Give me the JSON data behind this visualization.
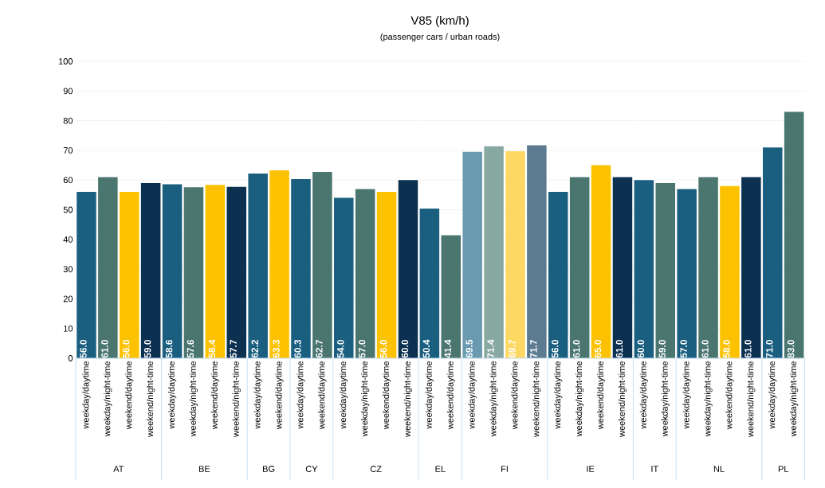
{
  "chart_data": [
    {
      "type": "bar",
      "xlabel": "AT",
      "categories": [
        "weekday/daytime",
        "weekday/night-time",
        "weekend/daytime",
        "weekend/night-time"
      ],
      "values": [
        56.0,
        61.0,
        56.0,
        59.0
      ],
      "value_labels": [
        "56.0",
        "61.0",
        "56.0",
        "59.0"
      ],
      "colors": [
        "#1a5f80",
        "#4a766f",
        "#fcc200",
        "#0b3050"
      ],
      "ylim": [
        0,
        100
      ],
      "yticks": [
        0,
        10,
        20,
        30,
        40,
        50,
        60,
        70,
        80,
        90,
        100
      ],
      "grid": "y"
    },
    {
      "type": "bar",
      "xlabel": "BE",
      "categories": [
        "weekday/daytime",
        "weekday/night-time",
        "weekend/daytime",
        "weekend/night-time"
      ],
      "values": [
        58.6,
        57.6,
        58.4,
        57.7
      ],
      "value_labels": [
        "58.6",
        "57.6",
        "58.4",
        "57.7"
      ],
      "colors": [
        "#1a5f80",
        "#4a766f",
        "#fcc200",
        "#0b3050"
      ],
      "ylim": [
        0,
        100
      ],
      "yticks": [
        0,
        10,
        20,
        30,
        40,
        50,
        60,
        70,
        80,
        90,
        100
      ],
      "grid": "y",
      "tick_labels": "x"
    },
    {
      "type": "bar",
      "xlabel": "BG",
      "categories": [
        "weekday/daytime",
        "weekend/daytime"
      ],
      "values": [
        62.2,
        63.3
      ],
      "value_labels": [
        "62.2",
        "63.3"
      ],
      "colors": [
        "#1a5f80",
        "#fcc200"
      ],
      "ylim": [
        0,
        100
      ],
      "yticks": [
        0,
        10,
        20,
        30,
        40,
        50,
        60,
        70,
        80,
        90,
        100
      ],
      "grid": "y",
      "tick_labels": "x"
    },
    {
      "type": "bar",
      "xlabel": "CY",
      "categories": [
        "weekday/daytime",
        "weekend/daytime"
      ],
      "values": [
        60.3,
        62.7
      ],
      "value_labels": [
        "60.3",
        "62.7"
      ],
      "colors": [
        "#1a5f80",
        "#4a766f"
      ],
      "ylim": [
        0,
        100
      ],
      "yticks": [
        0,
        10,
        20,
        30,
        40,
        50,
        60,
        70,
        80,
        90,
        100
      ],
      "grid": "y",
      "tick_labels": "x"
    },
    {
      "type": "bar",
      "xlabel": "CZ",
      "categories": [
        "weekday/daytime",
        "weekday/night-time",
        "weekend/daytime",
        "weekend/night-time"
      ],
      "values": [
        54.0,
        57.0,
        56.0,
        60.0
      ],
      "value_labels": [
        "54.0",
        "57.0",
        "56.0",
        "60.0"
      ],
      "colors": [
        "#1a5f80",
        "#4a766f",
        "#fcc200",
        "#0b3050"
      ],
      "ylim": [
        0,
        100
      ],
      "yticks": [
        0,
        10,
        20,
        30,
        40,
        50,
        60,
        70,
        80,
        90,
        100
      ],
      "grid": "y",
      "tick_labels": "x"
    },
    {
      "type": "bar",
      "title": "V85 (km/h)",
      "subtitle": "(passenger cars / urban roads)",
      "xlabel": "EL",
      "categories": [
        "weekday/daytime",
        "weekend/daytime"
      ],
      "values": [
        50.4,
        41.4
      ],
      "value_labels": [
        "50.4",
        "41.4"
      ],
      "colors": [
        "#1a5f80",
        "#4a766f"
      ],
      "ylim": [
        0,
        100
      ],
      "yticks": [
        0,
        10,
        20,
        30,
        40,
        50,
        60,
        70,
        80,
        90,
        100
      ],
      "grid": "y",
      "tick_labels": "x"
    },
    {
      "type": "bar",
      "xlabel": "FI",
      "categories": [
        "weekday/daytime",
        "weekday/night-time",
        "weekend/daytime",
        "weekend/night-time"
      ],
      "values": [
        69.5,
        71.4,
        69.7,
        71.7
      ],
      "value_labels": [
        "69.5",
        "71.4",
        "69.7",
        "71.7"
      ],
      "colors": [
        "#6a9ab0",
        "#88a8a2",
        "#fdd862",
        "#5c7a90"
      ],
      "ylim": [
        0,
        100
      ],
      "yticks": [
        0,
        10,
        20,
        30,
        40,
        50,
        60,
        70,
        80,
        90,
        100
      ],
      "grid": "y",
      "tick_labels": "x"
    },
    {
      "type": "bar",
      "xlabel": "IE",
      "categories": [
        "weekday/daytime",
        "weekday/night-time",
        "weekend/daytime",
        "weekend/night-time"
      ],
      "values": [
        56.0,
        61.0,
        65.0,
        61.0
      ],
      "value_labels": [
        "56.0",
        "61.0",
        "65.0",
        "61.0"
      ],
      "colors": [
        "#1a5f80",
        "#4a766f",
        "#fcc200",
        "#0b3050"
      ],
      "ylim": [
        0,
        100
      ],
      "yticks": [
        0,
        10,
        20,
        30,
        40,
        50,
        60,
        70,
        80,
        90,
        100
      ],
      "grid": "y",
      "tick_labels": "x"
    },
    {
      "type": "bar",
      "xlabel": "IT",
      "categories": [
        "weekday/daytime",
        "weekday/night-time"
      ],
      "values": [
        60.0,
        59.0
      ],
      "value_labels": [
        "60.0",
        "59.0"
      ],
      "colors": [
        "#1a5f80",
        "#4a766f"
      ],
      "ylim": [
        0,
        100
      ],
      "yticks": [
        0,
        10,
        20,
        30,
        40,
        50,
        60,
        70,
        80,
        90,
        100
      ],
      "grid": "y",
      "tick_labels": "x"
    },
    {
      "type": "bar",
      "xlabel": "NL",
      "categories": [
        "weekday/daytime",
        "weekday/night-time",
        "weekend/daytime",
        "weekend/night-time"
      ],
      "values": [
        57.0,
        61.0,
        58.0,
        61.0
      ],
      "value_labels": [
        "57.0",
        "61.0",
        "58.0",
        "61.0"
      ],
      "colors": [
        "#1a5f80",
        "#4a766f",
        "#fcc200",
        "#0b3050"
      ],
      "ylim": [
        0,
        100
      ],
      "yticks": [
        0,
        10,
        20,
        30,
        40,
        50,
        60,
        70,
        80,
        90,
        100
      ],
      "grid": "y",
      "tick_labels": "x"
    },
    {
      "type": "bar",
      "xlabel": "PL",
      "categories": [
        "weekday/daytime",
        "weekday/night-time"
      ],
      "values": [
        71.0,
        83.0
      ],
      "value_labels": [
        "71.0",
        "83.0"
      ],
      "colors": [
        "#1a5f80",
        "#4a766f"
      ],
      "ylim": [
        0,
        100
      ],
      "yticks": [
        0,
        10,
        20,
        30,
        40,
        50,
        60,
        70,
        80,
        90,
        100
      ],
      "grid": "y",
      "tick_labels": "x"
    }
  ]
}
